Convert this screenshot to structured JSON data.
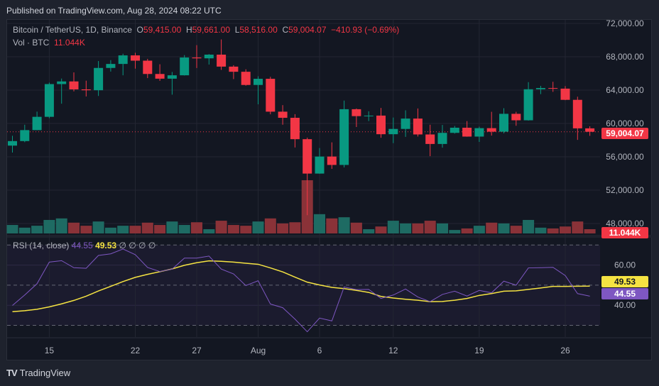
{
  "published": "Published on TradingView.com, Aug 28, 2024 08:22 UTC",
  "legend": {
    "symbol": "Bitcoin / TetherUS, 1D, Binance",
    "o_label": "O",
    "o_value": "59,415.00",
    "h_label": "H",
    "h_value": "59,661.00",
    "l_label": "L",
    "l_value": "58,516.00",
    "c_label": "C",
    "c_value": "59,004.07",
    "change": "−410.93 (−0.69%)",
    "vol_label": "Vol · BTC",
    "vol_value": "11.044K"
  },
  "rsi_legend": {
    "label": "RSI (14, close)",
    "rsi_value": "44.55",
    "ma_value": "49.53",
    "empty_values": "∅ ∅ ∅ ∅"
  },
  "price_axis": {
    "ticks": [
      "72,000.00",
      "68,000.00",
      "64,000.00",
      "60,000.00",
      "56,000.00",
      "52,000.00",
      "48,000.00"
    ],
    "last_price": "59,004.07",
    "last_volume": "11.044K"
  },
  "rsi_axis": {
    "ticks": [
      "60.00",
      "40.00"
    ],
    "ma_label": "49.53",
    "rsi_label": "44.55"
  },
  "time_axis": {
    "ticks": [
      "15",
      "22",
      "27",
      "Aug",
      "6",
      "12",
      "19",
      "26"
    ]
  },
  "footer": {
    "brand": "TradingView"
  },
  "colors": {
    "up": "#089981",
    "down": "#f23645",
    "volume_up": "#1e6b63",
    "volume_down": "#8a3238",
    "rsi": "#7e57c2",
    "rsi_ma": "#f5e342",
    "background": "#131722"
  },
  "chart_data": [
    {
      "type": "candlestick",
      "title": "Bitcoin / TetherUS, 1D, Binance",
      "ylim": [
        47000,
        72500
      ],
      "grid": true,
      "fields": [
        "date",
        "open",
        "high",
        "low",
        "close",
        "volume_k"
      ],
      "candles": [
        [
          "Jul 12",
          57344,
          58526,
          56512,
          57889,
          22
        ],
        [
          "Jul 13",
          57889,
          59850,
          57756,
          59204,
          15
        ],
        [
          "Jul 14",
          59203,
          61420,
          59194,
          60797,
          20
        ],
        [
          "Jul 15",
          60797,
          64900,
          60632,
          64724,
          35
        ],
        [
          "Jul 16",
          64725,
          65388,
          62373,
          65043,
          39
        ],
        [
          "Jul 17",
          65043,
          66128,
          63854,
          64087,
          28
        ],
        [
          "Jul 18",
          64087,
          65133,
          63238,
          63987,
          20
        ],
        [
          "Jul 19",
          63987,
          67486,
          63300,
          66660,
          31
        ],
        [
          "Jul 20",
          66660,
          67598,
          66222,
          67139,
          15
        ],
        [
          "Jul 21",
          67139,
          68366,
          65777,
          68165,
          20
        ],
        [
          "Jul 22",
          68166,
          68480,
          66574,
          67532,
          20
        ],
        [
          "Jul 23",
          67532,
          67750,
          65441,
          65936,
          28
        ],
        [
          "Jul 24",
          65936,
          67102,
          65111,
          65372,
          22
        ],
        [
          "Jul 25",
          65372,
          66175,
          63456,
          65778,
          31
        ],
        [
          "Jul 26",
          65778,
          68200,
          65750,
          67912,
          22
        ],
        [
          "Jul 27",
          67912,
          69399,
          66650,
          67813,
          29
        ],
        [
          "Jul 28",
          67813,
          68318,
          67066,
          68255,
          11
        ],
        [
          "Jul 29",
          68255,
          70079,
          66428,
          66819,
          33
        ],
        [
          "Jul 30",
          66819,
          66987,
          65323,
          66201,
          22
        ],
        [
          "Jul 31",
          66201,
          66500,
          64530,
          64619,
          20
        ],
        [
          "Aug 1",
          64619,
          65659,
          62302,
          65357,
          31
        ],
        [
          "Aug 2",
          65357,
          65596,
          61100,
          61415,
          39
        ],
        [
          "Aug 3",
          61415,
          62198,
          59850,
          60680,
          26
        ],
        [
          "Aug 4",
          60680,
          61117,
          57122,
          58116,
          29
        ],
        [
          "Aug 5",
          58116,
          58305,
          49000,
          53991,
          138
        ],
        [
          "Aug 6",
          53991,
          57059,
          53973,
          56034,
          50
        ],
        [
          "Aug 7",
          56034,
          57736,
          54558,
          55027,
          39
        ],
        [
          "Aug 8",
          55027,
          62745,
          54730,
          61710,
          42
        ],
        [
          "Aug 9",
          61710,
          61800,
          59575,
          60880,
          28
        ],
        [
          "Aug 10",
          60881,
          61464,
          60288,
          60945,
          11
        ],
        [
          "Aug 11",
          60945,
          61858,
          58286,
          58712,
          18
        ],
        [
          "Aug 12",
          58712,
          60711,
          57642,
          59346,
          33
        ],
        [
          "Aug 13",
          59346,
          61578,
          58392,
          60587,
          26
        ],
        [
          "Aug 14",
          60588,
          61800,
          58433,
          58683,
          26
        ],
        [
          "Aug 15",
          58683,
          59849,
          56078,
          57541,
          33
        ],
        [
          "Aug 16",
          57541,
          59817,
          57098,
          58874,
          26
        ],
        [
          "Aug 17",
          58874,
          59700,
          58786,
          59491,
          9
        ],
        [
          "Aug 18",
          59491,
          60284,
          58408,
          58427,
          13
        ],
        [
          "Aug 19",
          58427,
          59617,
          57787,
          59439,
          20
        ],
        [
          "Aug 20",
          59439,
          61400,
          58548,
          59014,
          28
        ],
        [
          "Aug 21",
          59014,
          61834,
          58823,
          61157,
          26
        ],
        [
          "Aug 22",
          61157,
          61400,
          59724,
          60381,
          20
        ],
        [
          "Aug 23",
          60381,
          64955,
          60345,
          64103,
          35
        ],
        [
          "Aug 24",
          64103,
          64513,
          63519,
          64251,
          15
        ],
        [
          "Aug 25",
          64251,
          64999,
          63792,
          64178,
          13
        ],
        [
          "Aug 26",
          64178,
          64481,
          62800,
          62834,
          18
        ],
        [
          "Aug 27",
          62834,
          63212,
          58034,
          59415,
          31
        ],
        [
          "Aug 28",
          59415,
          59661,
          58516,
          59004.07,
          11.044
        ]
      ]
    },
    {
      "type": "line",
      "title": "RSI (14, close)",
      "ylim": [
        25,
        72
      ],
      "bands": [
        30,
        50,
        70
      ],
      "series": [
        {
          "name": "RSI",
          "values": [
            39.9,
            45.1,
            50.7,
            61.5,
            62.2,
            58.7,
            58.4,
            64.8,
            65.6,
            68.0,
            65.2,
            58.8,
            56.8,
            58.0,
            63.5,
            63.5,
            64.5,
            58.0,
            55.6,
            49.8,
            52.2,
            40.6,
            38.8,
            33.1,
            26.8,
            33.6,
            32.2,
            49.1,
            47.8,
            47.9,
            43.4,
            45.1,
            48.1,
            44.1,
            41.8,
            45.4,
            47.0,
            44.6,
            47.4,
            46.2,
            52.0,
            50.0,
            58.6,
            58.7,
            58.9,
            54.8,
            45.8,
            44.55
          ]
        },
        {
          "name": "RSI-based MA",
          "values": [
            36.8,
            37.3,
            38.0,
            39.2,
            40.7,
            42.4,
            44.5,
            47.1,
            49.4,
            51.8,
            53.9,
            55.4,
            56.7,
            58.1,
            59.9,
            61.2,
            62.1,
            61.9,
            61.5,
            60.9,
            60.4,
            58.6,
            56.6,
            54.0,
            51.5,
            50.1,
            48.9,
            48.3,
            47.4,
            46.4,
            44.4,
            43.6,
            43.0,
            42.5,
            41.8,
            41.9,
            42.5,
            43.4,
            44.9,
            45.8,
            47.0,
            47.2,
            47.9,
            48.6,
            49.4,
            49.4,
            49.5,
            49.53
          ]
        }
      ]
    }
  ]
}
